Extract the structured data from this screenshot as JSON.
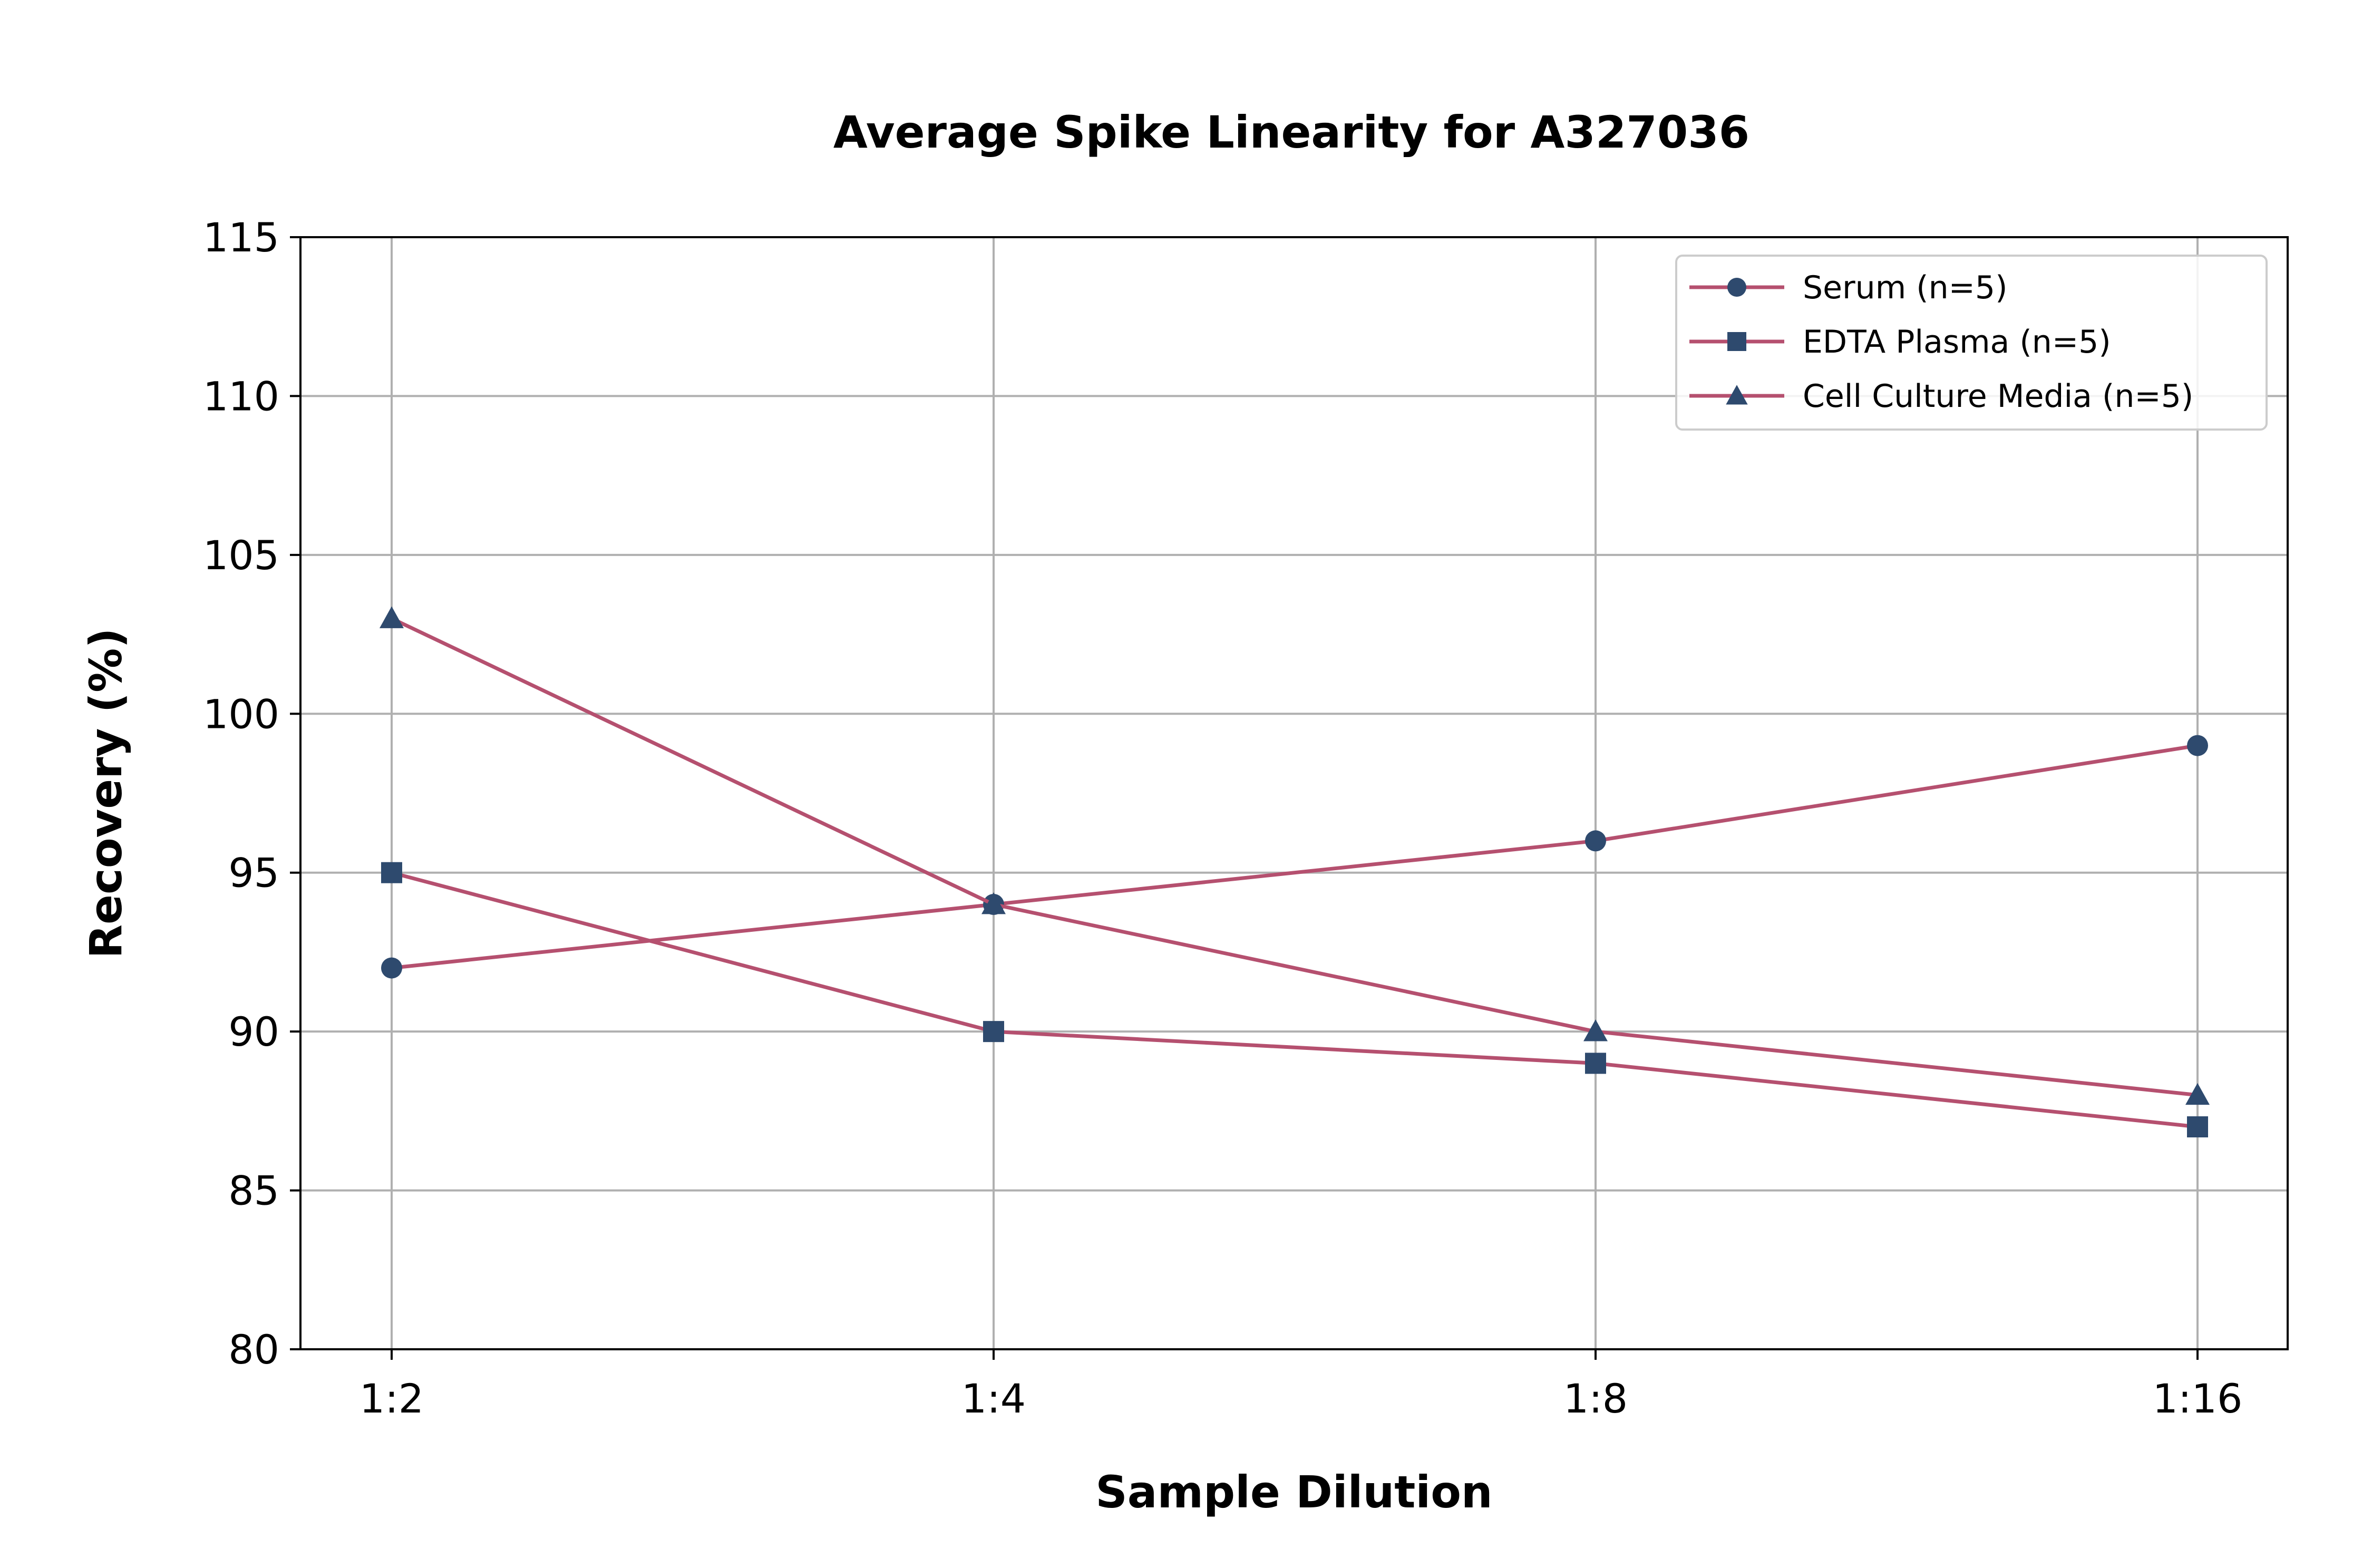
{
  "chart_data": {
    "type": "line",
    "title": "Average Spike Linearity for A327036",
    "xlabel": "Sample Dilution",
    "ylabel": "Recovery (%)",
    "categories": [
      "1:2",
      "1:4",
      "1:8",
      "1:16"
    ],
    "ylim": [
      80,
      115
    ],
    "yticks": [
      80,
      85,
      90,
      95,
      100,
      105,
      110,
      115
    ],
    "grid": true,
    "legend_position": "top-right",
    "line_color": "#b5506f",
    "marker_color": "#2e4a6e",
    "series": [
      {
        "name": "Serum (n=5)",
        "marker": "circle",
        "values": [
          92,
          94,
          96,
          99
        ]
      },
      {
        "name": "EDTA Plasma (n=5)",
        "marker": "square",
        "values": [
          95,
          90,
          89,
          87
        ]
      },
      {
        "name": "Cell Culture Media (n=5)",
        "marker": "triangle",
        "values": [
          103,
          94,
          90,
          88
        ]
      }
    ]
  }
}
